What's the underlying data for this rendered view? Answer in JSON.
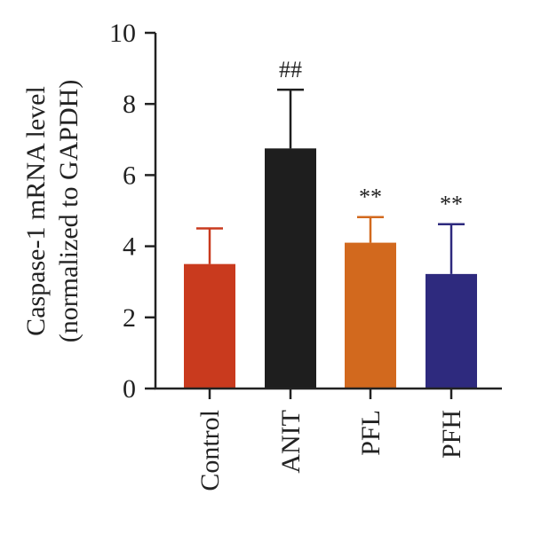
{
  "chart_data": {
    "type": "bar",
    "categories": [
      "Control",
      "ANIT",
      "PFL",
      "PFH"
    ],
    "values": [
      3.5,
      6.75,
      4.1,
      3.22
    ],
    "errors": [
      1.0,
      1.65,
      0.72,
      1.4
    ],
    "annotations": [
      "",
      "##",
      "**",
      "**"
    ],
    "colors": [
      "#c93a1e",
      "#1e1e1e",
      "#d2691e",
      "#2e2a7e"
    ],
    "ylabel": [
      "Caspase-1 mRNA level",
      "(normalized to GAPDH)"
    ],
    "xlabel": "",
    "title": "",
    "ylim": [
      0,
      10
    ],
    "yticks": [
      0,
      2,
      4,
      6,
      8,
      10
    ],
    "grid": false,
    "legend": "none"
  }
}
